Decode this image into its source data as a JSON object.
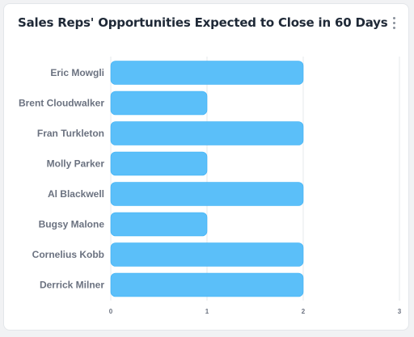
{
  "card": {
    "title": "Sales Reps' Opportunities Expected to Close in 60 Days",
    "menu_icon": "vertical-ellipsis-icon"
  },
  "colors": {
    "bar": "#5bbff9",
    "bar_border": "#3ab0f5",
    "gridline": "#e6e8eb",
    "label": "#6b7280"
  },
  "chart_data": {
    "type": "bar",
    "orientation": "horizontal",
    "title": "Sales Reps' Opportunities Expected to Close in 60 Days",
    "categories": [
      "Eric Mowgli",
      "Brent Cloudwalker",
      "Fran Turkleton",
      "Molly Parker",
      "Al Blackwell",
      "Bugsy Malone",
      "Cornelius Kobb",
      "Derrick Milner"
    ],
    "values": [
      2,
      1,
      2,
      1,
      2,
      1,
      2,
      2
    ],
    "xlim": [
      0,
      3
    ],
    "xticks": [
      "0",
      "1",
      "2",
      "3"
    ],
    "xlabel": "",
    "ylabel": "",
    "grid": true,
    "legend": "none"
  }
}
